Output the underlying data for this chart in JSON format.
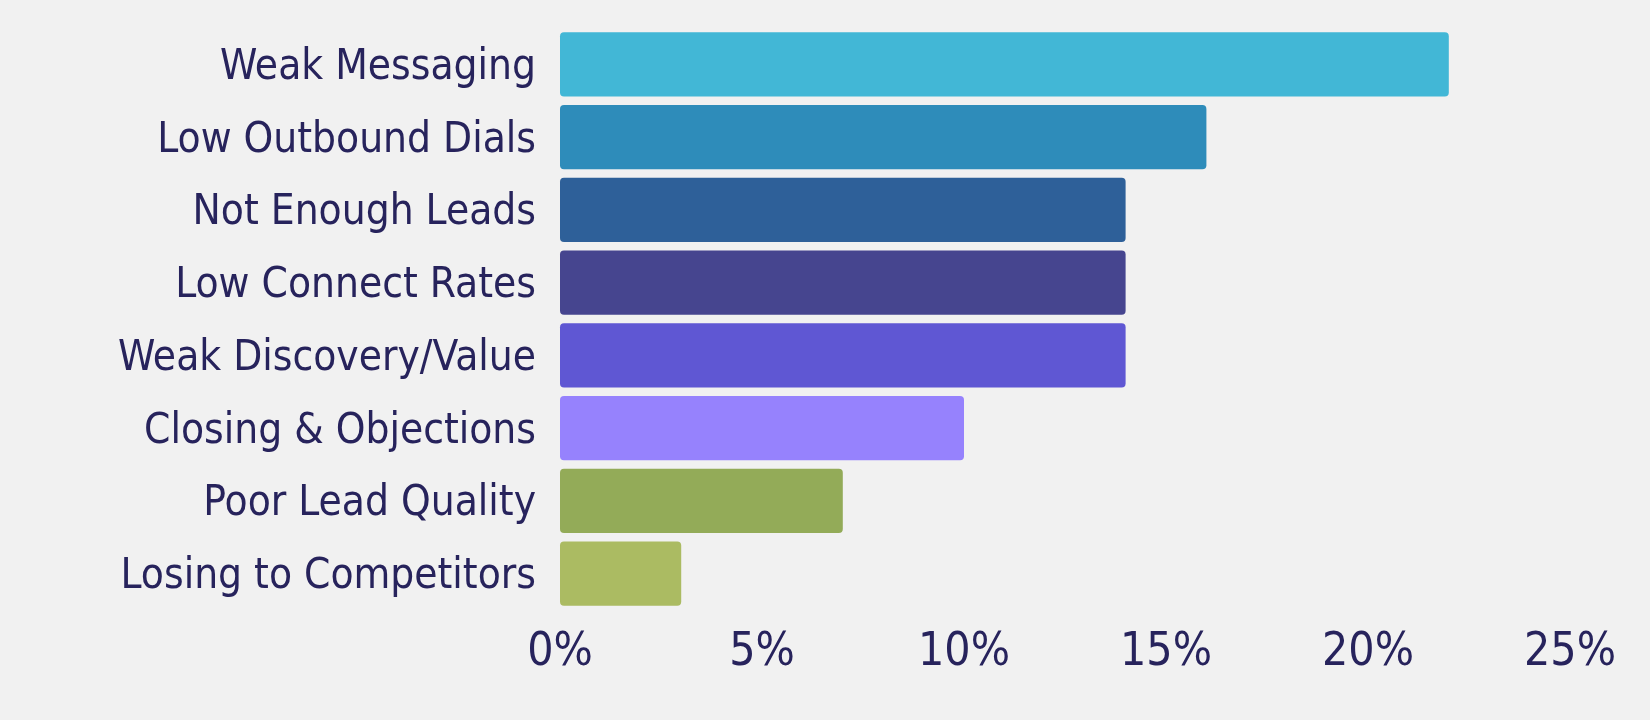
{
  "chart_data": {
    "type": "bar",
    "orientation": "horizontal",
    "categories": [
      "Weak Messaging",
      "Low Outbound Dials",
      "Not Enough Leads",
      "Low Connect Rates",
      "Weak Discovery/Value",
      "Closing & Objections",
      "Poor Lead Quality",
      "Losing to Competitors"
    ],
    "values": [
      22,
      16,
      14,
      14,
      14,
      10,
      7,
      3
    ],
    "colors": [
      "#42b7d6",
      "#2e8cba",
      "#2e6099",
      "#46458f",
      "#5f57d3",
      "#9682fd",
      "#93ab58",
      "#abbb62"
    ],
    "xlim": [
      0,
      25
    ],
    "xticks": [
      {
        "value": 0,
        "label": "0%"
      },
      {
        "value": 5,
        "label": "5%"
      },
      {
        "value": 10,
        "label": "10%"
      },
      {
        "value": 15,
        "label": "15%"
      },
      {
        "value": 20,
        "label": "20%"
      },
      {
        "value": 25,
        "label": "25%"
      }
    ],
    "grid": false
  }
}
